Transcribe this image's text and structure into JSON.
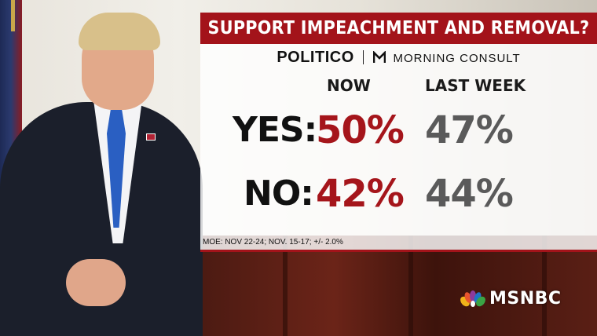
{
  "headline": "SUPPORT IMPEACHMENT AND REMOVAL?",
  "source": {
    "politico": "POLITICO",
    "morning_consult": "MORNING CONSULT"
  },
  "columns": {
    "now": "NOW",
    "last_week": "LAST WEEK"
  },
  "rows": [
    {
      "label": "YES:",
      "now": "50%",
      "last_week": "47%"
    },
    {
      "label": "NO:",
      "now": "42%",
      "last_week": "44%"
    }
  ],
  "footnote": "MOE: NOV 22-24; NOV. 15-17; +/- 2.0%",
  "network": "MSNBC",
  "colors": {
    "accent_red": "#a3131a",
    "now_red": "#a5151b",
    "last_gray": "#5a5a5a"
  }
}
